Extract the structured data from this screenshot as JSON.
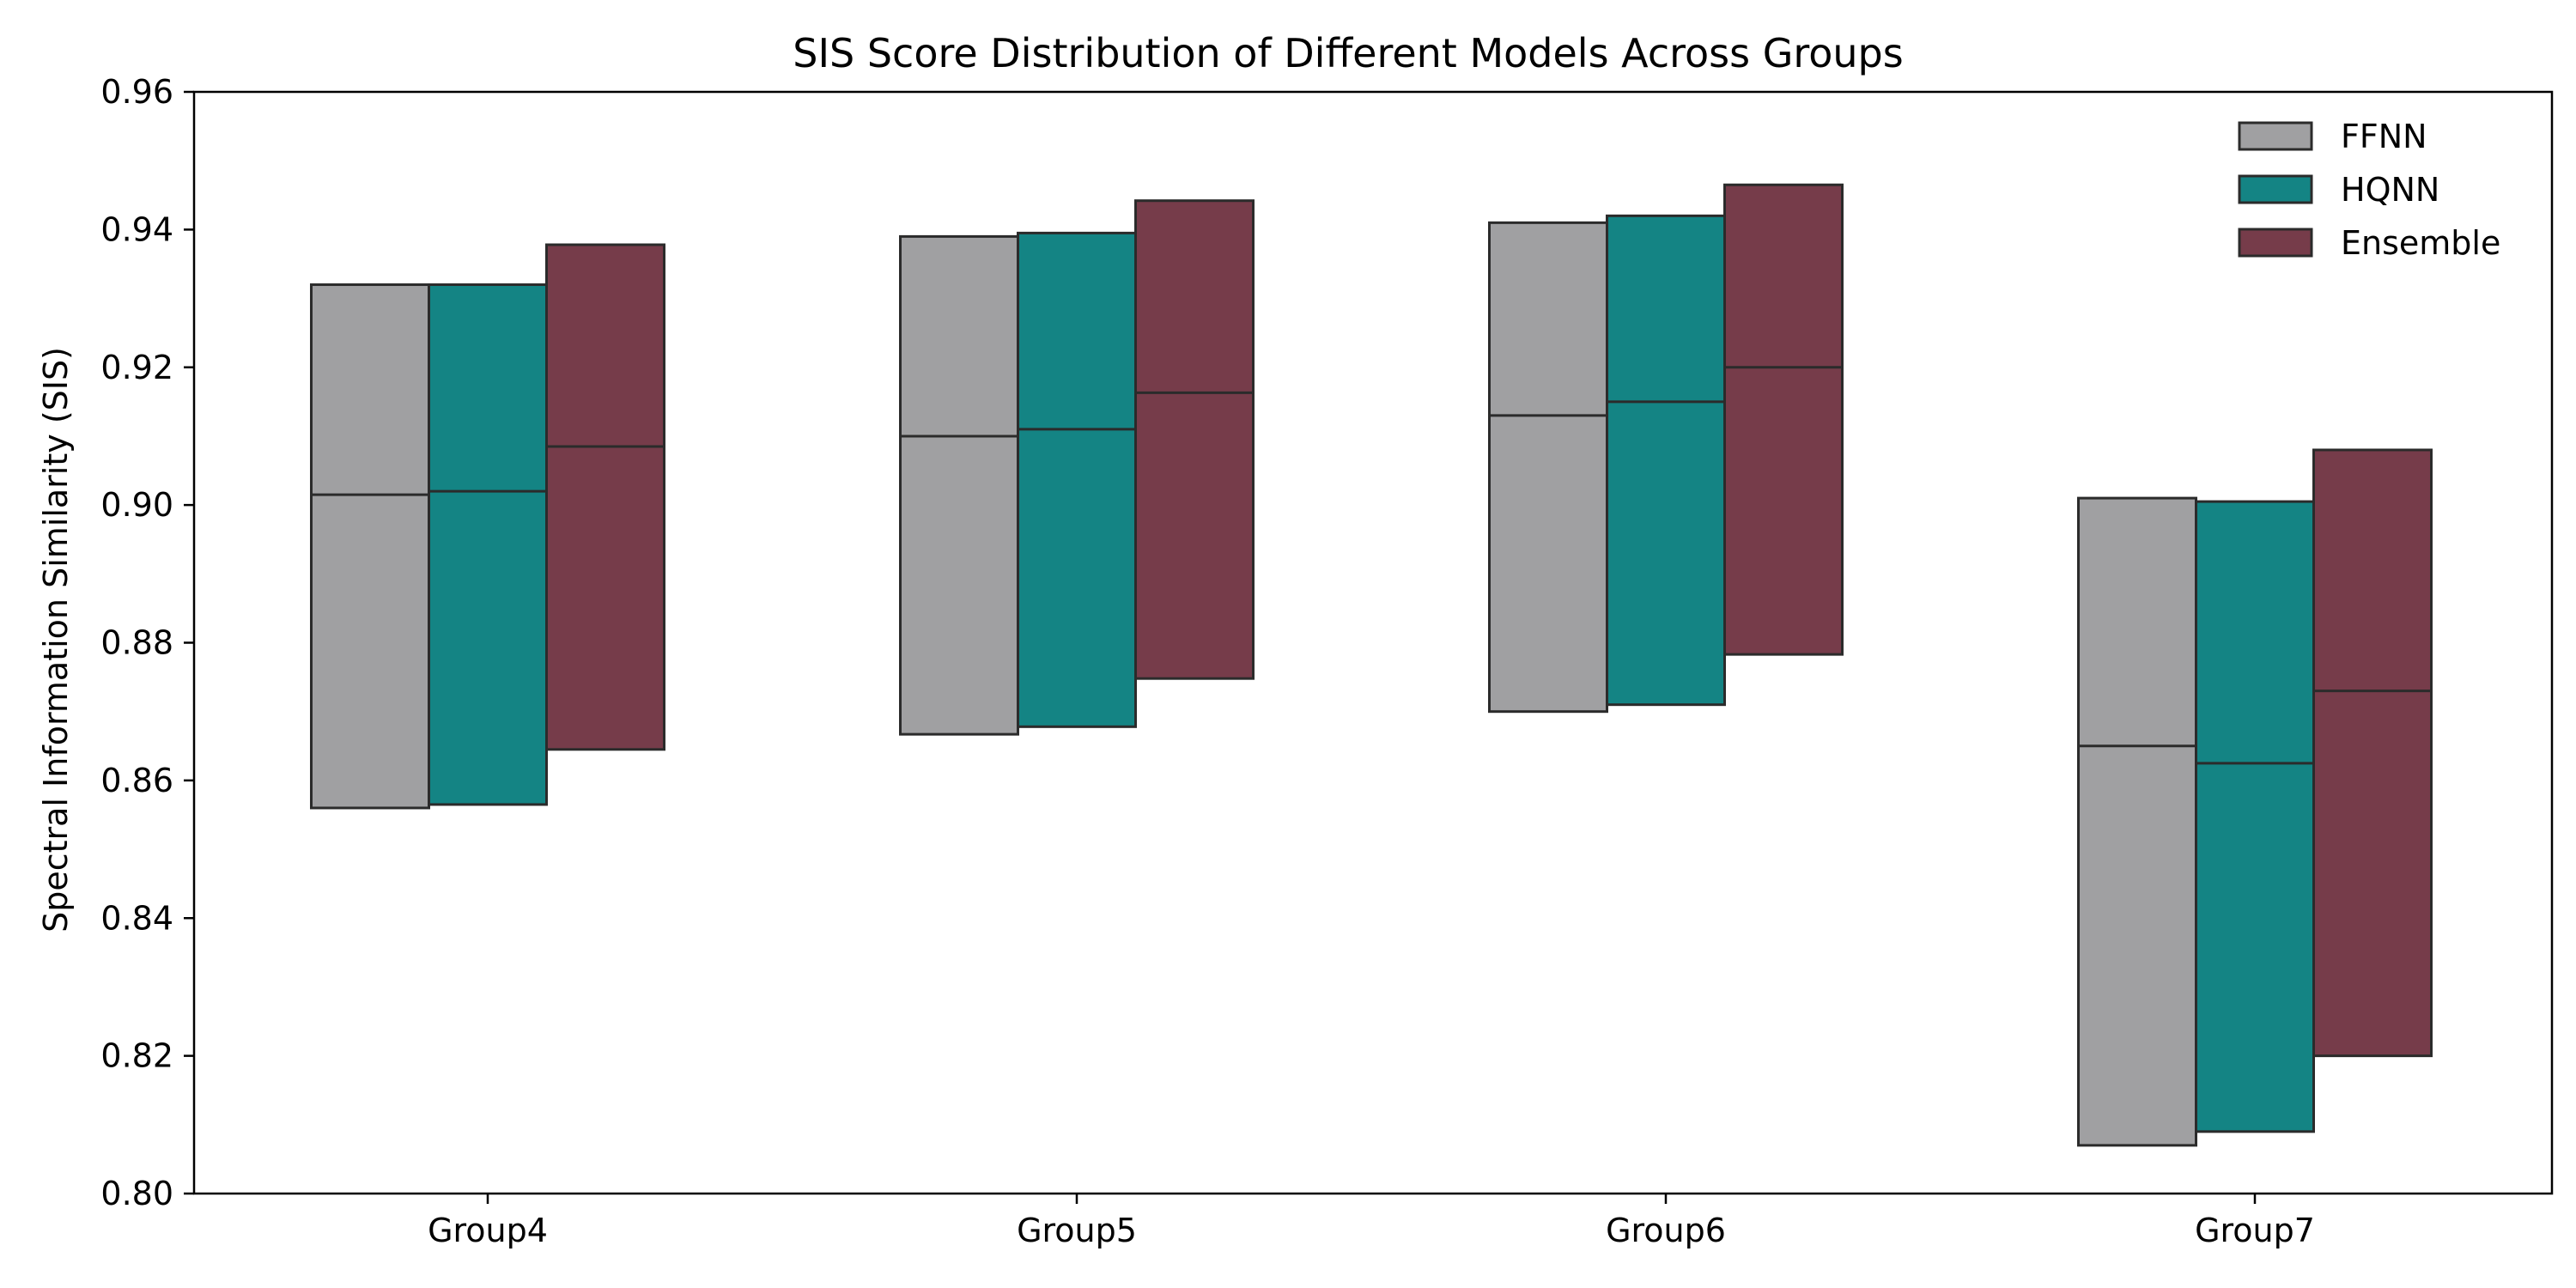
{
  "chart_data": {
    "type": "box",
    "title": "SIS Score Distribution of Different Models Across Groups",
    "xlabel": "",
    "ylabel": "Spectral Information Similarity (SIS)",
    "categories": [
      "Group4",
      "Group5",
      "Group6",
      "Group7"
    ],
    "ylim": [
      0.8,
      0.96
    ],
    "yticks": [
      "0.80",
      "0.82",
      "0.84",
      "0.86",
      "0.88",
      "0.90",
      "0.92",
      "0.94",
      "0.96"
    ],
    "grid": false,
    "legend_position": "top-right",
    "series": [
      {
        "name": "FFNN",
        "color": "#a0a0a2",
        "boxes": [
          {
            "low": 0.856,
            "median": 0.9015,
            "high": 0.932
          },
          {
            "low": 0.8667,
            "median": 0.91,
            "high": 0.939
          },
          {
            "low": 0.87,
            "median": 0.913,
            "high": 0.941
          },
          {
            "low": 0.807,
            "median": 0.865,
            "high": 0.901
          }
        ]
      },
      {
        "name": "HQNN",
        "color": "#148484",
        "boxes": [
          {
            "low": 0.8565,
            "median": 0.902,
            "high": 0.932
          },
          {
            "low": 0.8678,
            "median": 0.911,
            "high": 0.9395
          },
          {
            "low": 0.871,
            "median": 0.915,
            "high": 0.942
          },
          {
            "low": 0.809,
            "median": 0.8625,
            "high": 0.9005
          }
        ]
      },
      {
        "name": "Ensemble",
        "color": "#763c4a",
        "boxes": [
          {
            "low": 0.8645,
            "median": 0.9085,
            "high": 0.9378
          },
          {
            "low": 0.8748,
            "median": 0.9163,
            "high": 0.9442
          },
          {
            "low": 0.8783,
            "median": 0.92,
            "high": 0.9465
          },
          {
            "low": 0.82,
            "median": 0.873,
            "high": 0.908
          }
        ]
      }
    ]
  }
}
